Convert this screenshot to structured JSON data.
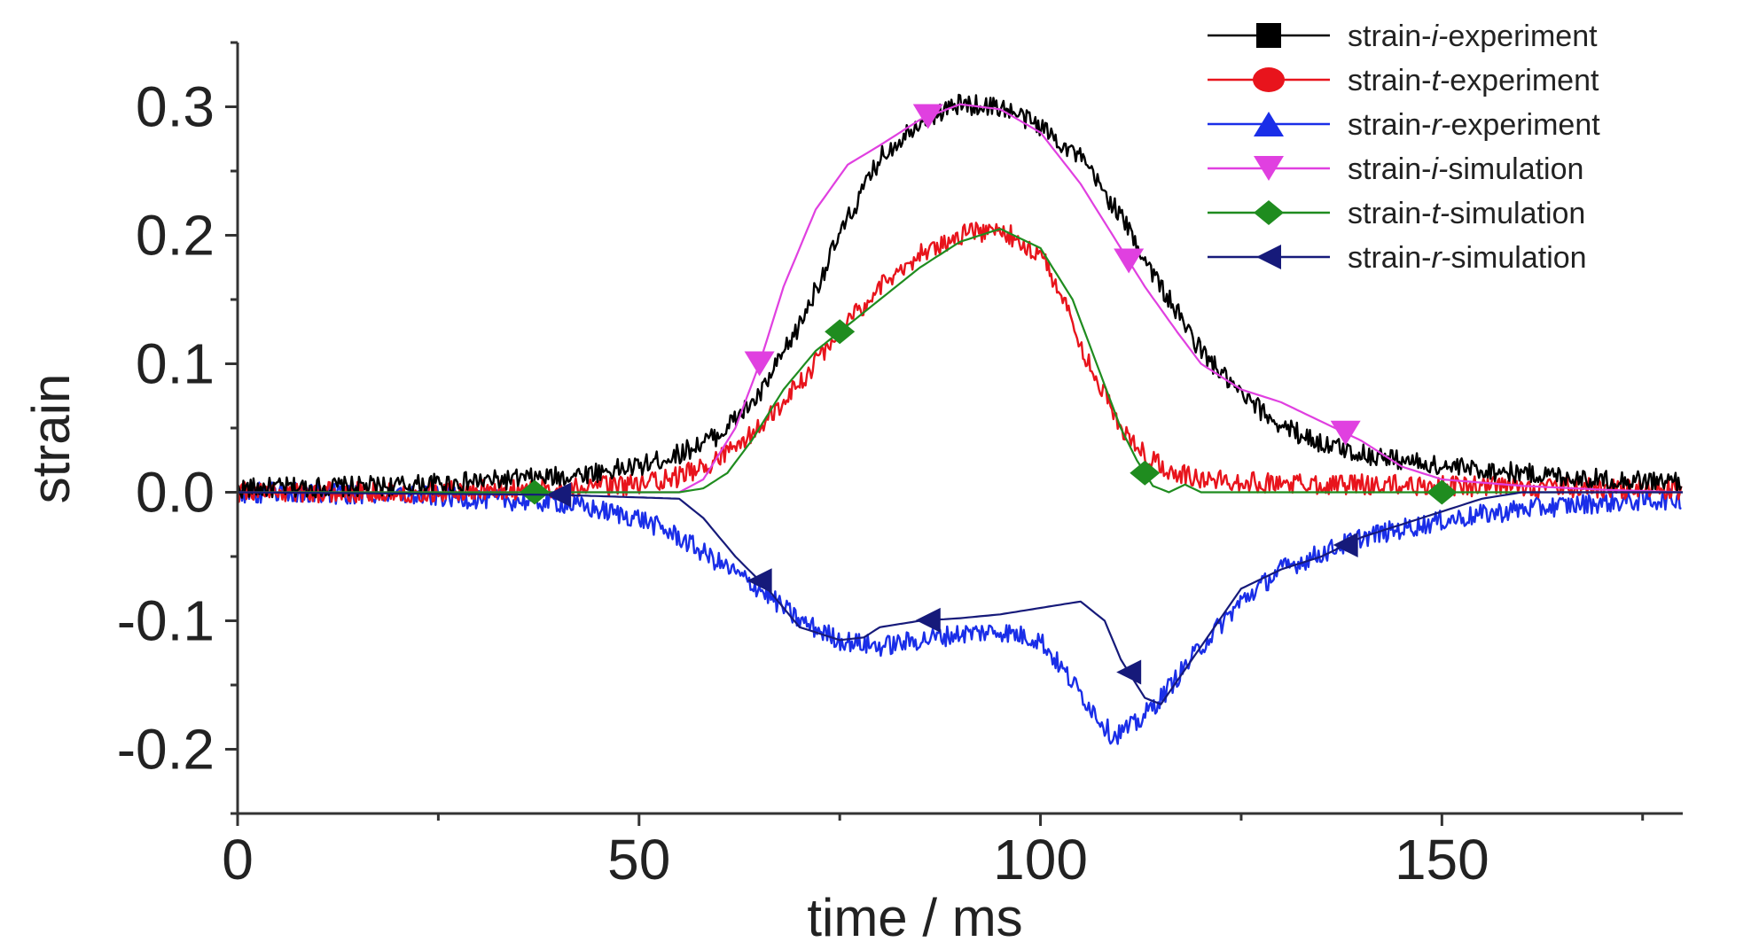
{
  "chart_data": {
    "type": "line",
    "xlabel": "time / ms",
    "ylabel": "strain",
    "xlim": [
      0,
      180
    ],
    "ylim": [
      -0.25,
      0.35
    ],
    "x_ticks": [
      0,
      50,
      100,
      150
    ],
    "x_tick_labels": [
      "0",
      "50",
      "100",
      "150"
    ],
    "y_ticks": [
      -0.2,
      -0.1,
      0.0,
      0.1,
      0.2,
      0.3
    ],
    "y_tick_labels": [
      "-0.2",
      "-0.1",
      "0.0",
      "0.1",
      "0.2",
      "0.3"
    ],
    "grid": false,
    "legend_position": "top-right",
    "series": [
      {
        "name": "strain-i-experiment",
        "italic": "i",
        "color": "#000000",
        "marker": "square",
        "noisy": true,
        "x": [
          0,
          20,
          40,
          50,
          55,
          60,
          65,
          70,
          75,
          80,
          85,
          90,
          95,
          100,
          105,
          110,
          115,
          120,
          125,
          130,
          135,
          140,
          150,
          160,
          170,
          180
        ],
        "y": [
          0.003,
          0.005,
          0.012,
          0.02,
          0.03,
          0.045,
          0.075,
          0.13,
          0.2,
          0.26,
          0.29,
          0.302,
          0.3,
          0.285,
          0.26,
          0.215,
          0.16,
          0.11,
          0.075,
          0.052,
          0.038,
          0.03,
          0.02,
          0.015,
          0.01,
          0.008
        ],
        "marker_x": []
      },
      {
        "name": "strain-t-experiment",
        "italic": "t",
        "color": "#e8141c",
        "marker": "circle",
        "noisy": true,
        "x": [
          0,
          20,
          40,
          50,
          55,
          60,
          65,
          70,
          75,
          80,
          85,
          90,
          95,
          100,
          103,
          106,
          110,
          113,
          116,
          120,
          130,
          150,
          170,
          180
        ],
        "y": [
          0.0,
          0.0,
          0.003,
          0.006,
          0.012,
          0.025,
          0.05,
          0.085,
          0.125,
          0.16,
          0.185,
          0.2,
          0.205,
          0.185,
          0.15,
          0.1,
          0.05,
          0.03,
          0.018,
          0.01,
          0.007,
          0.005,
          0.003,
          0.002
        ],
        "marker_x": []
      },
      {
        "name": "strain-r-experiment",
        "italic": "r",
        "color": "#1a2ee8",
        "marker": "triangle-up",
        "noisy": true,
        "x": [
          0,
          20,
          40,
          50,
          55,
          60,
          65,
          70,
          75,
          80,
          85,
          90,
          95,
          100,
          103,
          106,
          109,
          112,
          115,
          120,
          125,
          130,
          140,
          150,
          160,
          170,
          180
        ],
        "y": [
          0.0,
          -0.002,
          -0.008,
          -0.02,
          -0.035,
          -0.055,
          -0.075,
          -0.1,
          -0.115,
          -0.12,
          -0.115,
          -0.11,
          -0.108,
          -0.115,
          -0.14,
          -0.165,
          -0.19,
          -0.18,
          -0.16,
          -0.12,
          -0.085,
          -0.06,
          -0.035,
          -0.022,
          -0.013,
          -0.008,
          -0.005
        ],
        "marker_x": []
      },
      {
        "name": "strain-i-simulation",
        "italic": "i",
        "color": "#e040e0",
        "marker": "triangle-down",
        "noisy": false,
        "x": [
          0,
          55,
          58,
          62,
          65,
          68,
          72,
          76,
          80,
          85,
          90,
          95,
          100,
          105,
          110,
          113,
          117,
          120,
          125,
          130,
          135,
          140,
          145,
          150,
          160,
          170,
          180
        ],
        "y": [
          0.0,
          0.0,
          0.01,
          0.05,
          0.1,
          0.16,
          0.22,
          0.255,
          0.27,
          0.29,
          0.302,
          0.298,
          0.28,
          0.24,
          0.19,
          0.16,
          0.125,
          0.1,
          0.08,
          0.07,
          0.055,
          0.04,
          0.02,
          0.01,
          0.005,
          0.002,
          0.0
        ],
        "marker_x": [
          65,
          86,
          111,
          138
        ]
      },
      {
        "name": "strain-t-simulation",
        "italic": "t",
        "color": "#1f8c1f",
        "marker": "diamond",
        "noisy": false,
        "x": [
          0,
          55,
          58,
          61,
          64,
          68,
          72,
          76,
          80,
          85,
          90,
          95,
          100,
          104,
          107,
          110,
          112,
          114,
          116,
          118,
          120,
          130,
          150,
          180
        ],
        "y": [
          0.0,
          0.0,
          0.003,
          0.015,
          0.04,
          0.08,
          0.11,
          0.13,
          0.15,
          0.175,
          0.195,
          0.205,
          0.19,
          0.15,
          0.1,
          0.05,
          0.025,
          0.005,
          0.0,
          0.006,
          0.0,
          0.0,
          0.0,
          0.0
        ],
        "marker_x": [
          37,
          75,
          113,
          150
        ]
      },
      {
        "name": "strain-r-simulation",
        "italic": "r",
        "color": "#161a7a",
        "marker": "triangle-left",
        "noisy": false,
        "x": [
          0,
          40,
          55,
          58,
          62,
          66,
          70,
          75,
          78,
          80,
          85,
          90,
          95,
          100,
          105,
          108,
          110,
          113,
          115,
          120,
          125,
          130,
          135,
          140,
          150,
          155,
          160,
          170,
          180
        ],
        "y": [
          0.0,
          -0.002,
          -0.005,
          -0.02,
          -0.05,
          -0.075,
          -0.105,
          -0.115,
          -0.113,
          -0.105,
          -0.1,
          -0.098,
          -0.095,
          -0.09,
          -0.085,
          -0.1,
          -0.13,
          -0.16,
          -0.165,
          -0.12,
          -0.075,
          -0.06,
          -0.05,
          -0.035,
          -0.015,
          -0.005,
          0.0,
          0.0,
          0.0
        ],
        "marker_x": [
          40,
          65,
          86,
          111,
          138
        ]
      }
    ]
  }
}
